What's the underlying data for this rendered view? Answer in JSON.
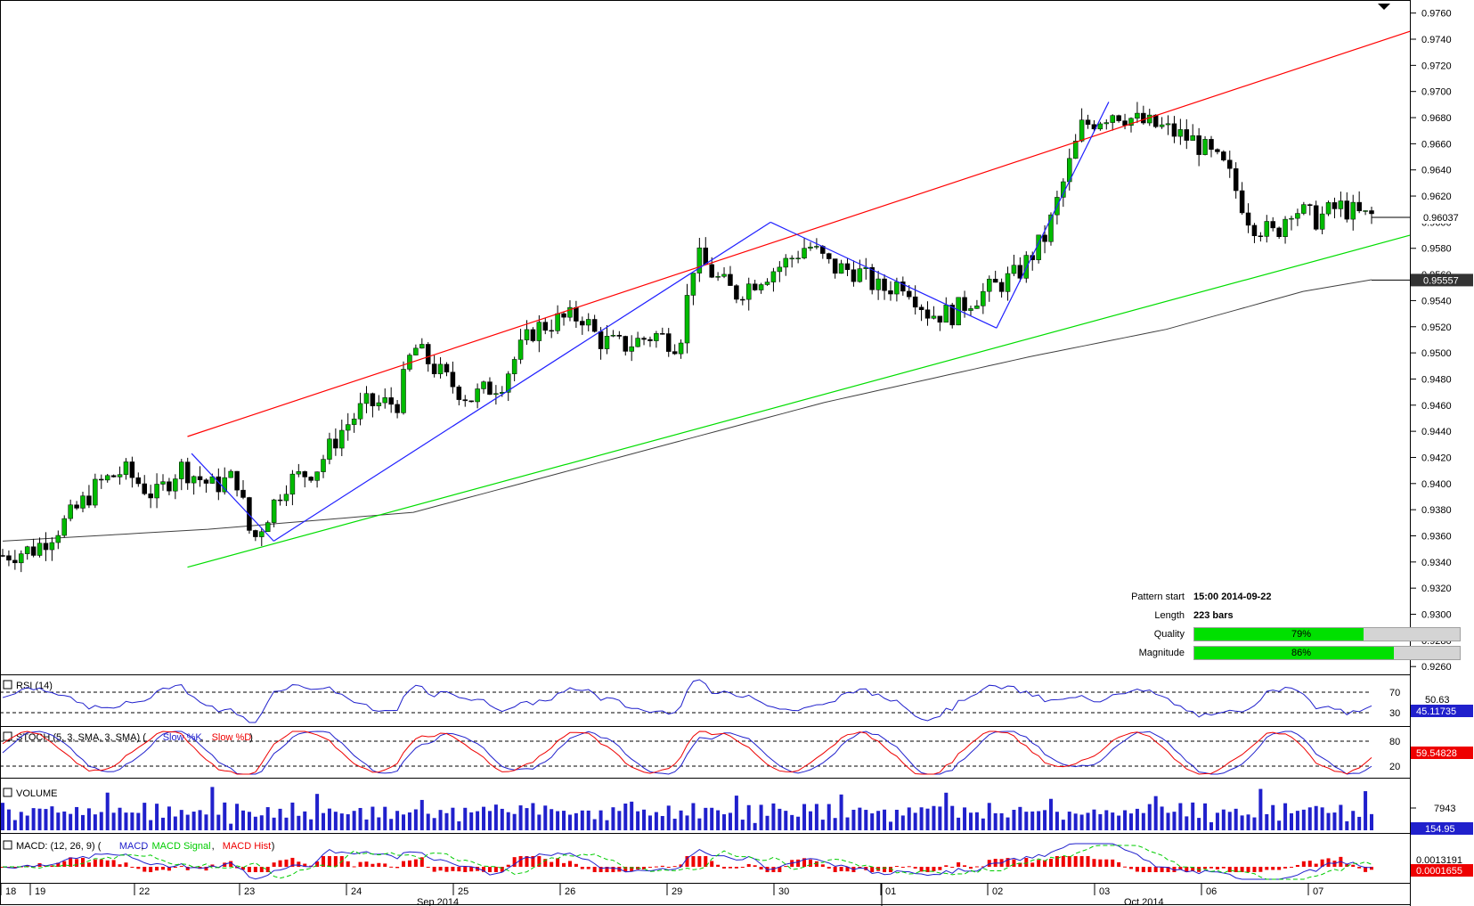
{
  "chart_data": {
    "type": "candlestick",
    "symbol_scale": "price",
    "price_axis": {
      "ylim": [
        0.9254,
        0.977
      ],
      "ticks": [
        "0.9760",
        "0.9740",
        "0.9720",
        "0.9700",
        "0.9680",
        "0.9660",
        "0.9640",
        "0.9620",
        "0.9600",
        "0.9580",
        "0.9560",
        "0.9540",
        "0.9520",
        "0.9500",
        "0.9480",
        "0.9460",
        "0.9440",
        "0.9420",
        "0.9400",
        "0.9380",
        "0.9360",
        "0.9340",
        "0.9320",
        "0.9300",
        "0.9280",
        "0.9260"
      ]
    },
    "x_axis": {
      "day_labels": [
        "18",
        "19",
        "22",
        "23",
        "24",
        "25",
        "26",
        "29",
        "30",
        "01",
        "02",
        "03",
        "06",
        "07"
      ],
      "month_labels": [
        "Sep 2014",
        "Oct 2014"
      ]
    },
    "bars": 223,
    "path_closes": [
      [
        0,
        0.9345
      ],
      [
        20,
        0.935
      ],
      [
        40,
        0.9372
      ],
      [
        60,
        0.94
      ],
      [
        75,
        0.941
      ],
      [
        95,
        0.939
      ],
      [
        110,
        0.9413
      ],
      [
        130,
        0.9398
      ],
      [
        145,
        0.9405
      ],
      [
        155,
        0.9355
      ],
      [
        175,
        0.94
      ],
      [
        195,
        0.9412
      ],
      [
        210,
        0.944
      ],
      [
        225,
        0.946
      ],
      [
        245,
        0.9462
      ],
      [
        255,
        0.9505
      ],
      [
        275,
        0.948
      ],
      [
        290,
        0.9465
      ],
      [
        310,
        0.9478
      ],
      [
        320,
        0.95
      ],
      [
        330,
        0.9518
      ],
      [
        345,
        0.9525
      ],
      [
        360,
        0.9528
      ],
      [
        370,
        0.951
      ],
      [
        385,
        0.9505
      ],
      [
        405,
        0.9514
      ],
      [
        420,
        0.9507
      ],
      [
        430,
        0.9575
      ],
      [
        445,
        0.9555
      ],
      [
        455,
        0.9545
      ],
      [
        470,
        0.9558
      ],
      [
        485,
        0.9568
      ],
      [
        500,
        0.9583
      ],
      [
        515,
        0.9565
      ],
      [
        530,
        0.9563
      ],
      [
        545,
        0.9548
      ],
      [
        560,
        0.9555
      ],
      [
        575,
        0.953
      ],
      [
        590,
        0.953
      ],
      [
        600,
        0.954
      ],
      [
        615,
        0.955
      ],
      [
        630,
        0.956
      ],
      [
        648,
        0.959
      ],
      [
        670,
        0.9673
      ],
      [
        690,
        0.9685
      ],
      [
        705,
        0.9677
      ],
      [
        720,
        0.9672
      ],
      [
        740,
        0.9662
      ],
      [
        760,
        0.964
      ],
      [
        775,
        0.96
      ],
      [
        790,
        0.959
      ],
      [
        800,
        0.9612
      ],
      [
        815,
        0.9602
      ],
      [
        830,
        0.9612
      ],
      [
        845,
        0.9604
      ],
      [
        850,
        0.9605
      ]
    ],
    "series": [
      {
        "name": "Resistance",
        "color": "#ff0000",
        "points": [
          [
            0.0,
            0.9436
          ],
          [
            1.0,
            0.9746
          ]
        ]
      },
      {
        "name": "Support",
        "color": "#00dd00",
        "points": [
          [
            0.0,
            0.9336
          ],
          [
            1.0,
            0.959
          ]
        ]
      },
      {
        "name": "Moving Average",
        "color": "#404040"
      },
      {
        "name": "Zigzag",
        "color": "#2020ff",
        "points": [
          [
            0.9423,
            0.9356
          ],
          [
            0.9356,
            0.96
          ],
          [
            0.96,
            0.9519
          ],
          [
            0.9519,
            0.9692
          ]
        ]
      }
    ],
    "current_price": "0.96037",
    "ma_price": "0.95557",
    "pattern_info": {
      "pattern_start_label": "Pattern start",
      "pattern_start": "15:00 2014-09-22",
      "length_label": "Length",
      "length": "223 bars",
      "quality_label": "Quality",
      "quality": 79,
      "quality_text": "79%",
      "magnitude_label": "Magnitude",
      "magnitude": 86,
      "magnitude_text": "86%"
    },
    "indicators": {
      "rsi": {
        "title": "RSI (14)",
        "levels": [
          "70",
          "30"
        ],
        "value": "45.11735",
        "value2": "50.63"
      },
      "stoch": {
        "title_prefix": "STOCH (5, 3, SMA, 3, SMA)",
        "k_label": "Slow %K",
        "d_label": "Slow %D",
        "levels": [
          "80",
          "20"
        ],
        "value": "59.54828"
      },
      "volume": {
        "title": "VOLUME",
        "tick": "7943",
        "value": "154.95"
      },
      "macd": {
        "title_prefix": "MACD: (12, 26, 9)",
        "macd_label": "MACD",
        "signal_label": "MACD Signal",
        "hist_label": "MACD Hist",
        "value": "0.0001655",
        "tick": "0.0013191"
      }
    }
  }
}
